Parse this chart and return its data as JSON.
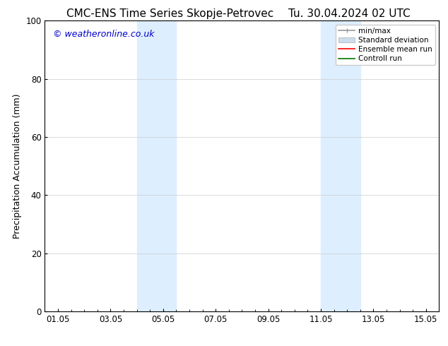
{
  "title_left": "CMC-ENS Time Series Skopje-Petrovec",
  "title_right": "Tu. 30.04.2024 02 UTC",
  "ylabel": "Precipitation Accumulation (mm)",
  "watermark": "© weatheronline.co.uk",
  "watermark_color": "#0000cc",
  "xlim_start": 0.5,
  "xlim_end": 15.5,
  "ylim_bottom": 0,
  "ylim_top": 100,
  "yticks": [
    0,
    20,
    40,
    60,
    80,
    100
  ],
  "xtick_labels": [
    "01.05",
    "03.05",
    "05.05",
    "07.05",
    "09.05",
    "11.05",
    "13.05",
    "15.05"
  ],
  "xtick_positions": [
    1,
    3,
    5,
    7,
    9,
    11,
    13,
    15
  ],
  "shaded_regions": [
    {
      "x_start": 4.0,
      "x_end": 5.5,
      "color": "#ddeeff"
    },
    {
      "x_start": 11.0,
      "x_end": 12.5,
      "color": "#ddeeff"
    }
  ],
  "legend_entries": [
    {
      "label": "min/max",
      "color": "#aaaaaa",
      "lw": 1.2,
      "style": "solid"
    },
    {
      "label": "Standard deviation",
      "color": "#ccddee",
      "lw": 8,
      "style": "solid"
    },
    {
      "label": "Ensemble mean run",
      "color": "#ff0000",
      "lw": 1.2,
      "style": "solid"
    },
    {
      "label": "Controll run",
      "color": "#007700",
      "lw": 1.2,
      "style": "solid"
    }
  ],
  "bg_color": "#ffffff",
  "grid_color": "#cccccc",
  "title_fontsize": 11,
  "axis_fontsize": 9,
  "tick_fontsize": 8.5,
  "watermark_fontsize": 9,
  "legend_fontsize": 7.5
}
